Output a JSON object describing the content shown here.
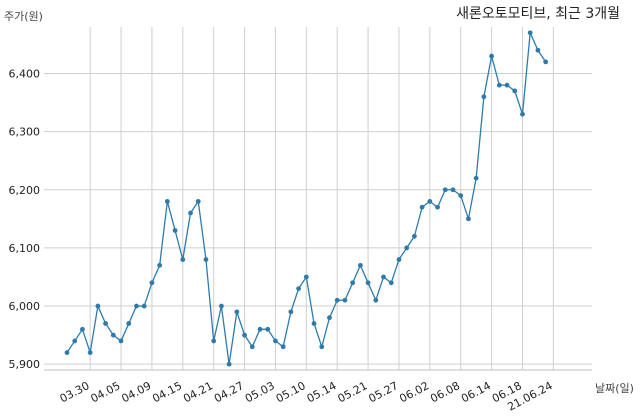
{
  "chart_data": {
    "type": "line",
    "title": "새론오토모티브, 최근 3개월",
    "ylabel": "주가(원)",
    "xlabel": "날짜(일)",
    "ylim": [
      5890,
      6480
    ],
    "yticks": [
      5900,
      6000,
      6100,
      6200,
      6300,
      6400
    ],
    "ytick_labels": [
      "5,900",
      "6,000",
      "6,100",
      "6,200",
      "6,300",
      "6,400"
    ],
    "xtick_labels": [
      "03.30",
      "04.05",
      "04.09",
      "04.15",
      "04.21",
      "04.27",
      "05.03",
      "05.10",
      "05.14",
      "05.21",
      "05.27",
      "06.02",
      "06.08",
      "06.14",
      "06.18",
      "21.06.24"
    ],
    "xtick_index": [
      3,
      7,
      11,
      15,
      19,
      23,
      27,
      31,
      35,
      39,
      43,
      47,
      51,
      55,
      59,
      63
    ],
    "grid": true,
    "line_color": "#2e7bab",
    "series": [
      {
        "values": [
          5920,
          5940,
          5960,
          5920,
          6000,
          5970,
          5950,
          5940,
          5970,
          6000,
          6000,
          6040,
          6070,
          6180,
          6130,
          6080,
          6160,
          6180,
          6080,
          5940,
          6000,
          5900,
          5990,
          5950,
          5930,
          5960,
          5960,
          5940,
          5930,
          5990,
          6030,
          6050,
          5970,
          5930,
          5980,
          6010,
          6010,
          6040,
          6070,
          6040,
          6010,
          6050,
          6040,
          6080,
          6100,
          6120,
          6170,
          6180,
          6170,
          6200,
          6200,
          6190,
          6150,
          6220,
          6360,
          6430,
          6380,
          6380,
          6370,
          6330,
          6470,
          6440,
          6420
        ]
      }
    ]
  }
}
